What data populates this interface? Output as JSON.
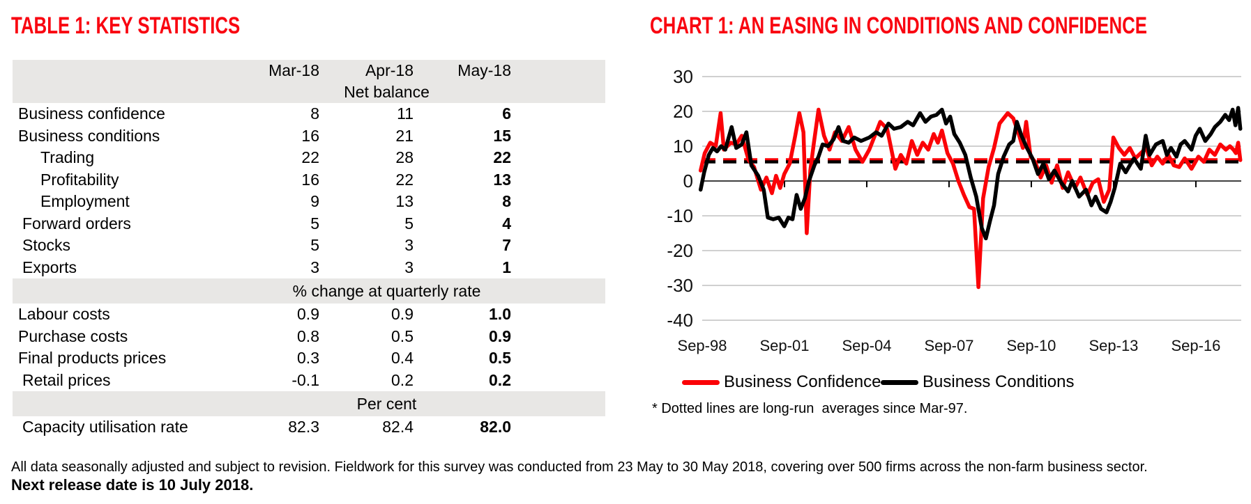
{
  "table": {
    "title": "TABLE 1: KEY STATISTICS",
    "columns": [
      "Mar-18",
      "Apr-18",
      "May-18"
    ],
    "sections": [
      {
        "header": "Net balance",
        "rows": [
          {
            "label": "Business confidence",
            "indent": 0,
            "values": [
              "8",
              "11",
              "6"
            ]
          },
          {
            "label": "Business conditions",
            "indent": 0,
            "values": [
              "16",
              "21",
              "15"
            ]
          },
          {
            "label": "Trading",
            "indent": 2,
            "values": [
              "22",
              "28",
              "22"
            ]
          },
          {
            "label": "Profitability",
            "indent": 2,
            "values": [
              "16",
              "22",
              "13"
            ]
          },
          {
            "label": "Employment",
            "indent": 2,
            "values": [
              "9",
              "13",
              "8"
            ]
          },
          {
            "label": "Forward orders",
            "indent": 1,
            "values": [
              "5",
              "5",
              "4"
            ]
          },
          {
            "label": "Stocks",
            "indent": 1,
            "values": [
              "5",
              "3",
              "7"
            ]
          },
          {
            "label": "Exports",
            "indent": 1,
            "values": [
              "3",
              "3",
              "1"
            ]
          }
        ]
      },
      {
        "header": "% change at quarterly rate",
        "rows": [
          {
            "label": "Labour costs",
            "indent": 0,
            "values": [
              "0.9",
              "0.9",
              "1.0"
            ]
          },
          {
            "label": "Purchase costs",
            "indent": 0,
            "values": [
              "0.8",
              "0.5",
              "0.9"
            ]
          },
          {
            "label": "Final products prices",
            "indent": 0,
            "values": [
              "0.3",
              "0.4",
              "0.5"
            ]
          },
          {
            "label": "Retail prices",
            "indent": 1,
            "values": [
              "-0.1",
              "0.2",
              "0.2"
            ]
          }
        ]
      },
      {
        "header": "Per cent",
        "rows": [
          {
            "label": "Capacity utilisation rate",
            "indent": 1,
            "values": [
              "82.3",
              "82.4",
              "82.0"
            ]
          }
        ]
      }
    ]
  },
  "chart": {
    "title": "CHART 1: AN EASING IN CONDITIONS AND CONFIDENCE",
    "footnote": "* Dotted lines are long-run  averages since Mar-97.",
    "legend": [
      {
        "label": "Business Confidence",
        "color": "#fb0207"
      },
      {
        "label": "Business Conditions",
        "color": "#000000"
      }
    ]
  },
  "chart_data": {
    "type": "line",
    "title": "CHART 1: AN EASING IN CONDITIONS AND CONFIDENCE",
    "xlabel": "",
    "ylabel": "Net balance",
    "ylim": [
      -40,
      30
    ],
    "y_ticks": [
      30,
      20,
      10,
      0,
      -10,
      -20,
      -30,
      -40
    ],
    "x_ticks": [
      {
        "label": "Sep-98",
        "t": 1998.708
      },
      {
        "label": "Sep-01",
        "t": 2001.708
      },
      {
        "label": "Sep-04",
        "t": 2004.708
      },
      {
        "label": "Sep-07",
        "t": 2007.708
      },
      {
        "label": "Sep-10",
        "t": 2010.708
      },
      {
        "label": "Sep-13",
        "t": 2013.708
      },
      {
        "label": "Sep-16",
        "t": 2016.708
      }
    ],
    "grid": true,
    "legend_position": "bottom",
    "long_run_averages": [
      {
        "name": "Business Confidence",
        "value": 6.1,
        "color": "#fb0207",
        "style": "dashed"
      },
      {
        "name": "Business Conditions",
        "value": 5.5,
        "color": "#000000",
        "style": "dashed"
      }
    ],
    "series": [
      {
        "name": "Business Confidence",
        "color": "#fb0207",
        "points": [
          [
            1998.65,
            3
          ],
          [
            1998.8,
            8
          ],
          [
            1999.0,
            11
          ],
          [
            1999.2,
            10
          ],
          [
            1999.38,
            19.5
          ],
          [
            1999.5,
            9
          ],
          [
            1999.75,
            11
          ],
          [
            1999.95,
            10.5
          ],
          [
            2000.15,
            13
          ],
          [
            2000.4,
            6
          ],
          [
            2000.6,
            4
          ],
          [
            2000.85,
            -2.5
          ],
          [
            2001.05,
            1
          ],
          [
            2001.25,
            -3.5
          ],
          [
            2001.4,
            1.5
          ],
          [
            2001.55,
            -2
          ],
          [
            2001.7,
            2
          ],
          [
            2001.9,
            5
          ],
          [
            2002.1,
            13
          ],
          [
            2002.25,
            19.5
          ],
          [
            2002.4,
            14
          ],
          [
            2002.52,
            -15
          ],
          [
            2002.65,
            3
          ],
          [
            2002.78,
            11
          ],
          [
            2002.95,
            20.5
          ],
          [
            2003.15,
            13
          ],
          [
            2003.35,
            9
          ],
          [
            2003.55,
            14
          ],
          [
            2003.8,
            11.5
          ],
          [
            2004.05,
            15.5
          ],
          [
            2004.3,
            9
          ],
          [
            2004.55,
            5.5
          ],
          [
            2004.8,
            9
          ],
          [
            2005.0,
            13
          ],
          [
            2005.2,
            17
          ],
          [
            2005.45,
            15
          ],
          [
            2005.75,
            3.5
          ],
          [
            2005.95,
            7.5
          ],
          [
            2006.15,
            5
          ],
          [
            2006.35,
            11.5
          ],
          [
            2006.55,
            7.5
          ],
          [
            2006.75,
            11
          ],
          [
            2006.95,
            9
          ],
          [
            2007.15,
            13.5
          ],
          [
            2007.3,
            11
          ],
          [
            2007.45,
            14.5
          ],
          [
            2007.65,
            8
          ],
          [
            2007.85,
            5
          ],
          [
            2008.05,
            0
          ],
          [
            2008.25,
            -4
          ],
          [
            2008.45,
            -7.5
          ],
          [
            2008.62,
            -8
          ],
          [
            2008.78,
            -30.5
          ],
          [
            2008.95,
            -5
          ],
          [
            2009.15,
            4
          ],
          [
            2009.35,
            9.5
          ],
          [
            2009.55,
            16.5
          ],
          [
            2009.85,
            19.5
          ],
          [
            2010.05,
            18
          ],
          [
            2010.25,
            13.5
          ],
          [
            2010.4,
            9.5
          ],
          [
            2010.52,
            17
          ],
          [
            2010.68,
            7
          ],
          [
            2010.85,
            5.5
          ],
          [
            2011.05,
            1
          ],
          [
            2011.25,
            4.5
          ],
          [
            2011.45,
            -0.5
          ],
          [
            2011.65,
            4.5
          ],
          [
            2011.85,
            -2
          ],
          [
            2012.05,
            2.5
          ],
          [
            2012.3,
            -2
          ],
          [
            2012.5,
            1
          ],
          [
            2012.75,
            -4
          ],
          [
            2012.95,
            -0.5
          ],
          [
            2013.15,
            0.5
          ],
          [
            2013.35,
            -6
          ],
          [
            2013.55,
            -2.5
          ],
          [
            2013.7,
            12.5
          ],
          [
            2013.9,
            9.5
          ],
          [
            2014.1,
            7.5
          ],
          [
            2014.3,
            9.5
          ],
          [
            2014.5,
            6.5
          ],
          [
            2014.7,
            8
          ],
          [
            2014.9,
            9.5
          ],
          [
            2015.1,
            4.5
          ],
          [
            2015.3,
            7
          ],
          [
            2015.5,
            5
          ],
          [
            2015.7,
            7.5
          ],
          [
            2015.9,
            4.5
          ],
          [
            2016.1,
            4
          ],
          [
            2016.3,
            6.5
          ],
          [
            2016.55,
            3.5
          ],
          [
            2016.8,
            7
          ],
          [
            2017.0,
            5.5
          ],
          [
            2017.2,
            9
          ],
          [
            2017.4,
            7.5
          ],
          [
            2017.6,
            10.5
          ],
          [
            2017.8,
            9
          ],
          [
            2017.95,
            10
          ],
          [
            2018.08,
            9
          ],
          [
            2018.17,
            8
          ],
          [
            2018.25,
            11
          ],
          [
            2018.33,
            6
          ]
        ]
      },
      {
        "name": "Business Conditions",
        "color": "#000000",
        "points": [
          [
            1998.65,
            -2.5
          ],
          [
            1998.78,
            2.5
          ],
          [
            1998.95,
            7.5
          ],
          [
            1999.1,
            9.5
          ],
          [
            1999.25,
            8.5
          ],
          [
            1999.4,
            10
          ],
          [
            1999.55,
            9
          ],
          [
            1999.78,
            15.5
          ],
          [
            1999.95,
            9.5
          ],
          [
            2000.15,
            10.5
          ],
          [
            2000.32,
            14
          ],
          [
            2000.5,
            4.5
          ],
          [
            2000.75,
            1.5
          ],
          [
            2000.95,
            -2.5
          ],
          [
            2001.1,
            -10.5
          ],
          [
            2001.3,
            -11
          ],
          [
            2001.5,
            -10.5
          ],
          [
            2001.7,
            -13
          ],
          [
            2001.85,
            -10.5
          ],
          [
            2002.0,
            -11
          ],
          [
            2002.15,
            -4
          ],
          [
            2002.3,
            -8
          ],
          [
            2002.45,
            -5
          ],
          [
            2002.6,
            0
          ],
          [
            2002.8,
            4.5
          ],
          [
            2002.95,
            7
          ],
          [
            2003.1,
            10.5
          ],
          [
            2003.3,
            10
          ],
          [
            2003.5,
            12
          ],
          [
            2003.68,
            15.5
          ],
          [
            2003.85,
            11.5
          ],
          [
            2004.05,
            11
          ],
          [
            2004.25,
            12.5
          ],
          [
            2004.5,
            11.5
          ],
          [
            2004.8,
            12.5
          ],
          [
            2005.05,
            14
          ],
          [
            2005.25,
            13
          ],
          [
            2005.5,
            16.5
          ],
          [
            2005.7,
            15
          ],
          [
            2005.95,
            15.5
          ],
          [
            2006.2,
            17
          ],
          [
            2006.4,
            16
          ],
          [
            2006.65,
            19.5
          ],
          [
            2006.85,
            17
          ],
          [
            2007.05,
            18.5
          ],
          [
            2007.25,
            19
          ],
          [
            2007.45,
            20.5
          ],
          [
            2007.6,
            16.5
          ],
          [
            2007.75,
            18.5
          ],
          [
            2007.9,
            13.5
          ],
          [
            2008.1,
            11
          ],
          [
            2008.3,
            7.5
          ],
          [
            2008.5,
            1
          ],
          [
            2008.7,
            -4.5
          ],
          [
            2008.9,
            -13.5
          ],
          [
            2009.05,
            -16.5
          ],
          [
            2009.2,
            -11.5
          ],
          [
            2009.35,
            -7
          ],
          [
            2009.5,
            2
          ],
          [
            2009.7,
            7
          ],
          [
            2009.9,
            10.5
          ],
          [
            2010.05,
            11.5
          ],
          [
            2010.18,
            17
          ],
          [
            2010.35,
            13
          ],
          [
            2010.55,
            9.5
          ],
          [
            2010.75,
            6.5
          ],
          [
            2010.95,
            2
          ],
          [
            2011.15,
            5
          ],
          [
            2011.35,
            0.5
          ],
          [
            2011.55,
            3
          ],
          [
            2011.8,
            -0.5
          ],
          [
            2012.05,
            -3
          ],
          [
            2012.2,
            0
          ],
          [
            2012.45,
            -4.5
          ],
          [
            2012.7,
            -2.5
          ],
          [
            2012.9,
            -7
          ],
          [
            2013.05,
            -4.5
          ],
          [
            2013.25,
            -8
          ],
          [
            2013.45,
            -9
          ],
          [
            2013.6,
            -6
          ],
          [
            2013.75,
            -2
          ],
          [
            2013.95,
            5
          ],
          [
            2014.15,
            2.5
          ],
          [
            2014.45,
            6.5
          ],
          [
            2014.7,
            3.5
          ],
          [
            2014.88,
            13
          ],
          [
            2015.02,
            7.5
          ],
          [
            2015.25,
            10.5
          ],
          [
            2015.5,
            11.5
          ],
          [
            2015.65,
            7.5
          ],
          [
            2015.8,
            9.5
          ],
          [
            2016.0,
            7
          ],
          [
            2016.15,
            10.5
          ],
          [
            2016.3,
            11.5
          ],
          [
            2016.55,
            9
          ],
          [
            2016.7,
            13
          ],
          [
            2016.85,
            15
          ],
          [
            2017.05,
            11.5
          ],
          [
            2017.25,
            13.5
          ],
          [
            2017.4,
            15.5
          ],
          [
            2017.6,
            17
          ],
          [
            2017.78,
            19
          ],
          [
            2017.92,
            17.5
          ],
          [
            2018.05,
            20.5
          ],
          [
            2018.15,
            16
          ],
          [
            2018.25,
            21
          ],
          [
            2018.33,
            15
          ]
        ]
      }
    ]
  },
  "footer": {
    "line1": "All data seasonally adjusted and subject to revision. Fieldwork for this survey was conducted from 23 May to 30 May 2018, covering over 500 firms across the non-farm business sector.",
    "line2": "Next release date is 10 July 2018."
  }
}
